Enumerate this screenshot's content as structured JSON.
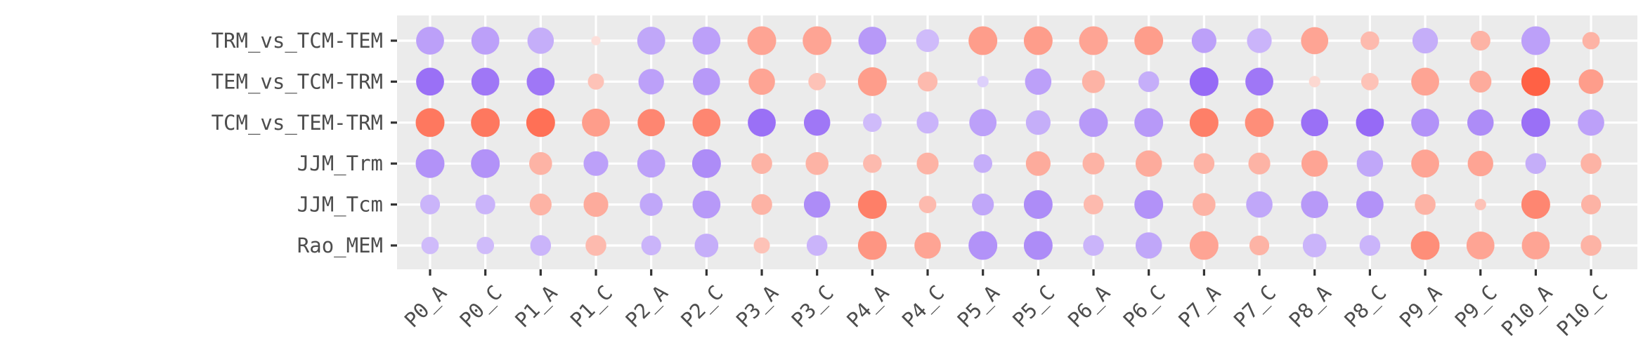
{
  "chart_data": {
    "type": "dot-plot",
    "title": "",
    "xlabel": "",
    "ylabel": "",
    "grid": true,
    "legend": "none",
    "colors": {
      "panel": "#ebebeb",
      "grid": "#ffffff",
      "blue": "#8c5cf5",
      "red": "#ff5a3c",
      "axis_text": "#4d4d4d"
    },
    "categories": [
      "P0_A",
      "P0_C",
      "P1_A",
      "P1_C",
      "P2_A",
      "P2_C",
      "P3_A",
      "P3_C",
      "P4_A",
      "P4_C",
      "P5_A",
      "P5_C",
      "P6_A",
      "P6_C",
      "P7_A",
      "P7_C",
      "P8_A",
      "P8_C",
      "P9_A",
      "P9_C",
      "P10_A",
      "P10_C"
    ],
    "rows": [
      "TRM_vs_TCM-TEM",
      "TEM_vs_TCM-TRM",
      "TCM_vs_TEM-TRM",
      "JJM_Trm",
      "JJM_Tcm",
      "Rao_MEM"
    ],
    "size": [
      [
        0.9,
        0.9,
        0.8,
        0.1,
        0.9,
        0.9,
        0.95,
        0.95,
        0.9,
        0.6,
        0.95,
        0.95,
        0.95,
        0.95,
        0.7,
        0.7,
        0.85,
        0.4,
        0.75,
        0.45,
        0.95,
        0.35
      ],
      [
        0.9,
        0.9,
        0.9,
        0.3,
        0.75,
        0.85,
        0.8,
        0.35,
        0.95,
        0.45,
        0.15,
        0.8,
        0.6,
        0.5,
        0.95,
        0.9,
        0.15,
        0.35,
        0.9,
        0.55,
        0.95,
        0.7
      ],
      [
        0.95,
        0.95,
        0.95,
        0.9,
        0.85,
        0.9,
        0.9,
        0.8,
        0.4,
        0.55,
        0.85,
        0.7,
        0.95,
        0.95,
        0.95,
        0.95,
        0.85,
        0.9,
        0.9,
        0.8,
        0.95,
        0.8
      ],
      [
        0.95,
        0.95,
        0.6,
        0.7,
        0.9,
        0.95,
        0.5,
        0.6,
        0.4,
        0.55,
        0.4,
        0.7,
        0.55,
        0.8,
        0.5,
        0.55,
        0.8,
        0.8,
        0.9,
        0.75,
        0.5,
        0.5
      ],
      [
        0.45,
        0.45,
        0.55,
        0.7,
        0.6,
        0.9,
        0.5,
        0.8,
        0.95,
        0.35,
        0.55,
        0.95,
        0.45,
        0.95,
        0.6,
        0.8,
        0.85,
        0.85,
        0.5,
        0.15,
        0.95,
        0.45
      ],
      [
        0.35,
        0.35,
        0.5,
        0.5,
        0.45,
        0.65,
        0.3,
        0.5,
        0.95,
        0.8,
        0.95,
        0.95,
        0.5,
        0.8,
        0.95,
        0.45,
        0.65,
        0.5,
        0.95,
        0.9,
        0.9,
        0.5
      ]
    ],
    "value": [
      [
        -0.5,
        -0.5,
        -0.4,
        0.1,
        -0.45,
        -0.5,
        0.5,
        0.5,
        -0.55,
        -0.3,
        0.55,
        0.55,
        0.5,
        0.55,
        -0.5,
        -0.35,
        0.5,
        0.35,
        -0.4,
        0.4,
        -0.5,
        0.4
      ],
      [
        -0.85,
        -0.8,
        -0.8,
        0.3,
        -0.5,
        -0.55,
        0.5,
        0.3,
        0.55,
        0.35,
        -0.15,
        -0.5,
        0.4,
        -0.4,
        -0.9,
        -0.8,
        0.15,
        0.3,
        0.5,
        0.45,
        0.95,
        0.55
      ],
      [
        0.8,
        0.8,
        0.85,
        0.55,
        0.7,
        0.7,
        -0.85,
        -0.8,
        -0.3,
        -0.35,
        -0.5,
        -0.4,
        -0.55,
        -0.55,
        0.75,
        0.65,
        -0.85,
        -0.9,
        -0.6,
        -0.65,
        -0.85,
        -0.5
      ],
      [
        -0.6,
        -0.6,
        0.4,
        -0.5,
        -0.5,
        -0.65,
        0.4,
        0.4,
        0.35,
        0.4,
        -0.4,
        0.45,
        0.4,
        0.45,
        0.4,
        0.4,
        0.5,
        -0.45,
        0.5,
        0.5,
        -0.4,
        0.4
      ],
      [
        -0.35,
        -0.35,
        0.4,
        0.45,
        -0.45,
        -0.55,
        0.4,
        -0.65,
        0.75,
        0.35,
        -0.45,
        -0.65,
        0.35,
        -0.6,
        0.4,
        -0.45,
        -0.55,
        -0.6,
        0.4,
        0.3,
        0.7,
        0.4
      ],
      [
        -0.3,
        -0.3,
        -0.35,
        0.35,
        -0.35,
        -0.4,
        0.3,
        -0.35,
        0.6,
        0.5,
        -0.6,
        -0.65,
        -0.35,
        -0.45,
        0.5,
        0.4,
        -0.35,
        -0.35,
        0.65,
        0.5,
        0.5,
        0.4
      ]
    ]
  }
}
